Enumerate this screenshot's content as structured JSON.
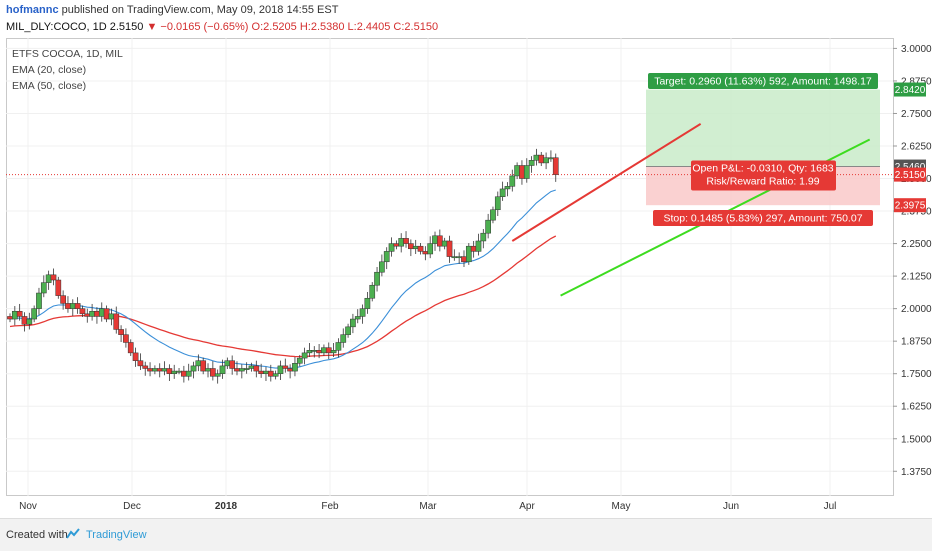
{
  "header": {
    "user": "hofmannc",
    "published_text": " published on TradingView.com, May 09, 2018 14:55 EST"
  },
  "quote": {
    "symbol": "MIL_DLY:COCO, 1D",
    "last": "2.5150",
    "change": "▼ −0.0165 (−0.65%)",
    "ohlc": "O:2.5205 H:2.5380 L:2.4405 C:2.5150"
  },
  "legend": {
    "title": "ETFS COCOA, 1D, MIL",
    "ema20": "EMA (20, close)",
    "ema50": "EMA (50, close)"
  },
  "colors": {
    "up_candle": "#4caf50",
    "down_candle": "#e53935",
    "ema20": "#3b8fd8",
    "ema50": "#e53935",
    "trend_upper": "#e53935",
    "trend_lower": "#3ddc1f",
    "target_zone": "#c9ebc9",
    "stop_zone": "#f9c9c9",
    "label_green": "#2e9d44",
    "label_red": "#e53935"
  },
  "labels": {
    "target": "Target: 0.2960 (11.63%) 592, Amount: 1498.17",
    "open_pl": "Open P&L: -0.0310, Qty: 1683",
    "rr": "Risk/Reward Ratio: 1.99",
    "stop": "Stop: 0.1485 (5.83%) 297, Amount: 750.07"
  },
  "price_badges": [
    {
      "value": "2.8420",
      "color": "#2e9d44"
    },
    {
      "value": "2.5460",
      "color": "#555555"
    },
    {
      "value": "2.5150",
      "color": "#e53935"
    },
    {
      "value": "2.3975",
      "color": "#e53935"
    }
  ],
  "footer": {
    "created": "Created with",
    "brand": "TradingView"
  },
  "chart_data": {
    "type": "candlestick",
    "ylim": [
      1.28,
      3.04
    ],
    "y_ticks": [
      "3.0000",
      "2.8750",
      "2.7500",
      "2.6250",
      "2.5000",
      "2.3750",
      "2.2500",
      "2.1250",
      "2.0000",
      "1.8750",
      "1.7500",
      "1.6250",
      "1.5000",
      "1.3750"
    ],
    "x_ticks": [
      "Nov",
      "Dec",
      "2018",
      "Feb",
      "Mar",
      "Apr",
      "May",
      "Jun",
      "Jul"
    ],
    "closes": [
      1.96,
      1.99,
      1.97,
      1.94,
      1.96,
      2.0,
      2.06,
      2.1,
      2.13,
      2.11,
      2.05,
      2.02,
      2.0,
      2.02,
      2.0,
      1.98,
      1.97,
      1.99,
      1.97,
      2.0,
      1.96,
      1.98,
      1.92,
      1.9,
      1.87,
      1.83,
      1.8,
      1.78,
      1.77,
      1.76,
      1.77,
      1.76,
      1.77,
      1.75,
      1.76,
      1.76,
      1.74,
      1.76,
      1.78,
      1.8,
      1.76,
      1.77,
      1.74,
      1.75,
      1.78,
      1.8,
      1.77,
      1.76,
      1.77,
      1.77,
      1.78,
      1.76,
      1.75,
      1.76,
      1.74,
      1.75,
      1.78,
      1.77,
      1.76,
      1.79,
      1.81,
      1.83,
      1.84,
      1.84,
      1.83,
      1.85,
      1.83,
      1.84,
      1.87,
      1.9,
      1.93,
      1.96,
      1.97,
      2.0,
      2.04,
      2.09,
      2.14,
      2.18,
      2.22,
      2.25,
      2.24,
      2.27,
      2.25,
      2.23,
      2.24,
      2.22,
      2.21,
      2.25,
      2.28,
      2.24,
      2.26,
      2.2,
      2.2,
      2.2,
      2.18,
      2.24,
      2.22,
      2.26,
      2.29,
      2.34,
      2.38,
      2.43,
      2.46,
      2.47,
      2.51,
      2.55,
      2.5,
      2.55,
      2.57,
      2.59,
      2.56,
      2.58,
      2.58,
      2.515
    ],
    "ema20_endpoints": {
      "start": 1.96,
      "mid_low": 1.77,
      "end": 2.43
    },
    "ema50_endpoints": {
      "start": 1.93,
      "mid_low": 1.79,
      "end": 2.3
    },
    "trend_upper": {
      "from": [
        104,
        2.26
      ],
      "to": [
        143,
        2.71
      ]
    },
    "trend_lower": {
      "from": [
        114,
        2.05
      ],
      "to": [
        178,
        2.65
      ]
    },
    "position": {
      "entry": 2.546,
      "target": 2.842,
      "stop": 2.3975
    }
  }
}
